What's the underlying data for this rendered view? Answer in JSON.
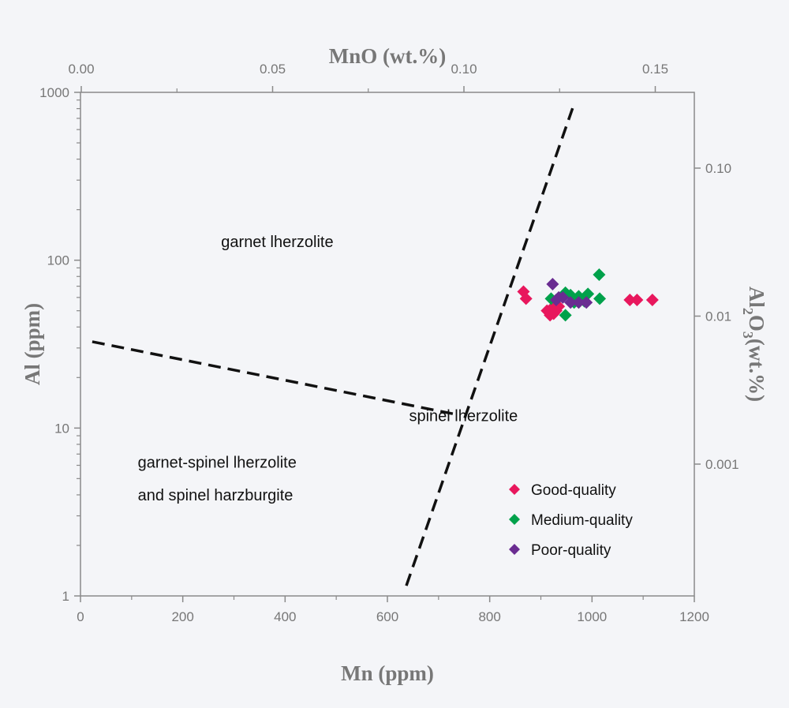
{
  "chart_data": {
    "type": "scatter",
    "xlabel": "Mn (ppm)",
    "ylabel": "Al (ppm)",
    "x2label": "MnO (wt.%)",
    "y2label_main": "Al",
    "y2label_sub1": "2",
    "y2label_mid": "O",
    "y2label_sub2": "3",
    "y2label_end": "(wt.%)",
    "xlim": [
      0,
      1200
    ],
    "ylim": [
      1,
      1000
    ],
    "yscale": "log",
    "xticks": [
      "0",
      "200",
      "400",
      "600",
      "800",
      "1000",
      "1200"
    ],
    "yticks": [
      "1",
      "10",
      "100",
      "1000"
    ],
    "x2ticks": [
      "0.00",
      "0.05",
      "0.10",
      "0.15"
    ],
    "y2ticks": [
      "0.10",
      "0.01",
      "0.001"
    ],
    "grid": false,
    "legend_placement": "bottom-right",
    "series": [
      {
        "name": "Good-quality",
        "color": "#e8175d",
        "points": [
          [
            866,
            65
          ],
          [
            871,
            59
          ],
          [
            912,
            50
          ],
          [
            918,
            47
          ],
          [
            922,
            52
          ],
          [
            925,
            48
          ],
          [
            930,
            50
          ],
          [
            935,
            53
          ],
          [
            1074,
            58
          ],
          [
            1088,
            58
          ],
          [
            1118,
            58
          ]
        ]
      },
      {
        "name": "Medium-quality",
        "color": "#00a14b",
        "points": [
          [
            920,
            59
          ],
          [
            948,
            64
          ],
          [
            958,
            62
          ],
          [
            974,
            61
          ],
          [
            992,
            63
          ],
          [
            1015,
            59
          ],
          [
            1014,
            82
          ],
          [
            948,
            47
          ],
          [
            965,
            56
          ],
          [
            985,
            57
          ]
        ]
      },
      {
        "name": "Poor-quality",
        "color": "#6a2c91",
        "points": [
          [
            923,
            72
          ],
          [
            935,
            60
          ],
          [
            943,
            60
          ],
          [
            958,
            56
          ],
          [
            974,
            56
          ],
          [
            989,
            56
          ],
          [
            930,
            58
          ]
        ]
      }
    ],
    "boundaries": [
      {
        "style": "dashed",
        "points": [
          [
            23,
            32.7
          ],
          [
            732,
            12.1
          ]
        ]
      },
      {
        "style": "dashed",
        "points": [
          [
            637,
            1.15
          ],
          [
            962,
            804
          ]
        ]
      }
    ],
    "annotations": [
      {
        "text": "garnet lherzolite",
        "at": [
          275,
          120
        ]
      },
      {
        "text": "spinel lherzolite",
        "at": [
          855,
          11
        ]
      },
      {
        "text": "garnet-spinel lherzolite",
        "at": [
          112,
          5.8
        ]
      },
      {
        "text": "and spinel harzburgite",
        "at": [
          112,
          3.7
        ]
      }
    ]
  }
}
